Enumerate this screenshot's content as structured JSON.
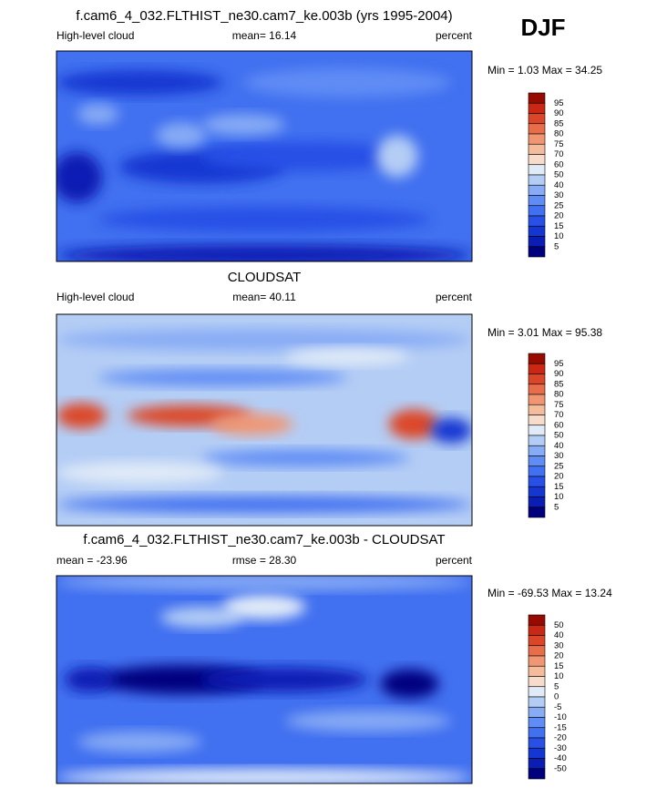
{
  "season": "DJF",
  "colorbar_colors": [
    "#00007f",
    "#0a1eb4",
    "#1437d2",
    "#2850e6",
    "#4170f0",
    "#5f8cf5",
    "#87abf5",
    "#b4cdf5",
    "#e1ebf8",
    "#f8dccb",
    "#f5bc9b",
    "#f09673",
    "#e86e4b",
    "#dc4628",
    "#c82814",
    "#960a00"
  ],
  "panels": [
    {
      "title": "f.cam6_4_032.FLTHIST_ne30.cam7_ke.003b (yrs 1995-2004)",
      "left": "High-level cloud",
      "center": "mean=  16.14",
      "right": "percent",
      "minmax": "Min =  1.03 Max =  34.25",
      "levels": [
        95,
        90,
        85,
        80,
        75,
        70,
        60,
        50,
        40,
        30,
        25,
        20,
        15,
        10,
        5
      ]
    },
    {
      "title": "CLOUDSAT",
      "left": "High-level cloud",
      "center": "mean=  40.11",
      "right": "percent",
      "minmax": "Min =  3.01 Max = 95.38",
      "levels": [
        95,
        90,
        85,
        80,
        75,
        70,
        60,
        50,
        40,
        30,
        25,
        20,
        15,
        10,
        5
      ]
    },
    {
      "title": "f.cam6_4_032.FLTHIST_ne30.cam7_ke.003b - CLOUDSAT",
      "left": "mean = -23.96",
      "center": "rmse =  28.30",
      "right": "percent",
      "minmax": "Min = -69.53 Max =  13.24",
      "levels": [
        50,
        40,
        30,
        20,
        15,
        10,
        5,
        0,
        -5,
        -10,
        -15,
        -20,
        -30,
        -40,
        -50
      ]
    }
  ]
}
